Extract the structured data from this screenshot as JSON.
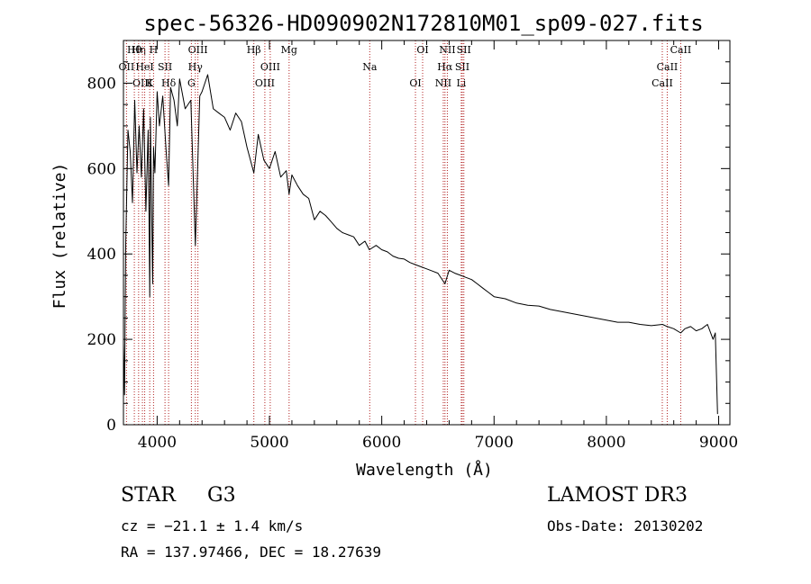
{
  "chart_data": {
    "type": "line",
    "title": "spec-56326-HD090902N172810M01_sp09-027.fits",
    "xlabel": "Wavelength (Å)",
    "ylabel": "Flux (relative)",
    "xlim": [
      3700,
      9100
    ],
    "ylim": [
      0,
      900
    ],
    "x_ticks": [
      4000,
      5000,
      6000,
      7000,
      8000,
      9000
    ],
    "y_ticks": [
      0,
      200,
      400,
      600,
      800
    ],
    "series": [
      {
        "name": "flux",
        "color": "#000000",
        "x": [
          3700,
          3710,
          3720,
          3740,
          3760,
          3780,
          3800,
          3820,
          3840,
          3860,
          3880,
          3900,
          3920,
          3934,
          3940,
          3960,
          3968,
          3980,
          4000,
          4020,
          4050,
          4080,
          4102,
          4120,
          4150,
          4180,
          4200,
          4250,
          4300,
          4340,
          4380,
          4400,
          4450,
          4500,
          4550,
          4600,
          4650,
          4700,
          4750,
          4800,
          4861,
          4900,
          4950,
          5000,
          5050,
          5100,
          5150,
          5175,
          5200,
          5250,
          5300,
          5350,
          5400,
          5450,
          5500,
          5550,
          5600,
          5650,
          5700,
          5750,
          5800,
          5850,
          5890,
          5950,
          6000,
          6050,
          6100,
          6150,
          6200,
          6250,
          6300,
          6350,
          6400,
          6450,
          6500,
          6563,
          6600,
          6650,
          6700,
          6750,
          6800,
          6850,
          6900,
          6950,
          7000,
          7100,
          7200,
          7300,
          7400,
          7500,
          7600,
          7700,
          7800,
          7900,
          8000,
          8100,
          8200,
          8300,
          8400,
          8500,
          8542,
          8600,
          8662,
          8700,
          8750,
          8800,
          8850,
          8900,
          8950,
          8970,
          8990
        ],
        "values": [
          190,
          70,
          420,
          690,
          640,
          520,
          760,
          590,
          700,
          580,
          740,
          500,
          690,
          300,
          720,
          330,
          650,
          590,
          780,
          700,
          770,
          640,
          560,
          790,
          760,
          700,
          810,
          740,
          760,
          420,
          770,
          780,
          820,
          740,
          730,
          720,
          690,
          730,
          710,
          650,
          590,
          680,
          620,
          600,
          640,
          580,
          595,
          540,
          585,
          560,
          540,
          530,
          480,
          500,
          490,
          475,
          460,
          450,
          445,
          440,
          420,
          430,
          410,
          420,
          410,
          405,
          395,
          390,
          388,
          380,
          375,
          370,
          365,
          360,
          355,
          330,
          362,
          355,
          350,
          345,
          340,
          330,
          320,
          310,
          300,
          295,
          285,
          280,
          278,
          270,
          265,
          260,
          255,
          250,
          245,
          240,
          240,
          235,
          232,
          235,
          230,
          225,
          215,
          225,
          230,
          220,
          225,
          235,
          200,
          215,
          25
        ]
      }
    ],
    "lines": [
      {
        "label": "Hθ",
        "wavelength": 3797
      },
      {
        "label": "OII",
        "wavelength": 3727
      },
      {
        "label": "OIII",
        "wavelength": 3869
      },
      {
        "label": "Hη",
        "wavelength": 3835
      },
      {
        "label": "HeI",
        "wavelength": 3889
      },
      {
        "label": "K",
        "wavelength": 3934
      },
      {
        "label": "H",
        "wavelength": 3968
      },
      {
        "label": "SII",
        "wavelength": 4070
      },
      {
        "label": "Hδ",
        "wavelength": 4102
      },
      {
        "label": "OIII",
        "wavelength": 4363
      },
      {
        "label": "Hγ",
        "wavelength": 4340
      },
      {
        "label": "G",
        "wavelength": 4305
      },
      {
        "label": "Hβ",
        "wavelength": 4861
      },
      {
        "label": "OIII",
        "wavelength": 5007
      },
      {
        "label": "OIII",
        "wavelength": 4959
      },
      {
        "label": "Mg",
        "wavelength": 5175
      },
      {
        "label": "Na",
        "wavelength": 5893
      },
      {
        "label": "OI",
        "wavelength": 6300
      },
      {
        "label": "OI",
        "wavelength": 6364
      },
      {
        "label": "Hα",
        "wavelength": 6563
      },
      {
        "label": "NII",
        "wavelength": 6548
      },
      {
        "label": "NII",
        "wavelength": 6584
      },
      {
        "label": "SII",
        "wavelength": 6717
      },
      {
        "label": "Li",
        "wavelength": 6708
      },
      {
        "label": "SII",
        "wavelength": 6731
      },
      {
        "label": "CaII",
        "wavelength": 8542
      },
      {
        "label": "CaII",
        "wavelength": 8498
      },
      {
        "label": "CaII",
        "wavelength": 8662
      }
    ]
  },
  "info": {
    "class": "STAR",
    "subclass": "G3",
    "cz": "cz = −21.1 ± 1.4 km/s",
    "coords": "RA = 137.97466, DEC =  18.27639",
    "survey": "LAMOST DR3",
    "obs_date": "Obs-Date: 20130202"
  }
}
